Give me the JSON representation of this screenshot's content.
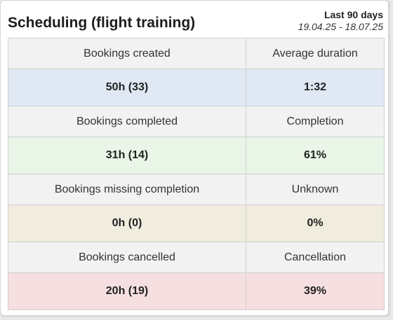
{
  "widget": {
    "title": "Scheduling (flight training)",
    "period_label": "Last 90 days",
    "period_range": "19.04.25 - 18.07.25"
  },
  "rows": [
    {
      "label_left": "Bookings created",
      "label_right": "Average duration",
      "value_left": "50h (33)",
      "value_right": "1:32",
      "color": "#dfe8f3"
    },
    {
      "label_left": "Bookings completed",
      "label_right": "Completion",
      "value_left": "31h (14)",
      "value_right": "61%",
      "color": "#e9f5e7"
    },
    {
      "label_left": "Bookings missing completion",
      "label_right": "Unknown",
      "value_left": "0h (0)",
      "value_right": "0%",
      "color": "#f0ecde"
    },
    {
      "label_left": "Bookings cancelled",
      "label_right": "Cancellation",
      "value_left": "20h (19)",
      "value_right": "39%",
      "color": "#f6dfe0"
    }
  ]
}
